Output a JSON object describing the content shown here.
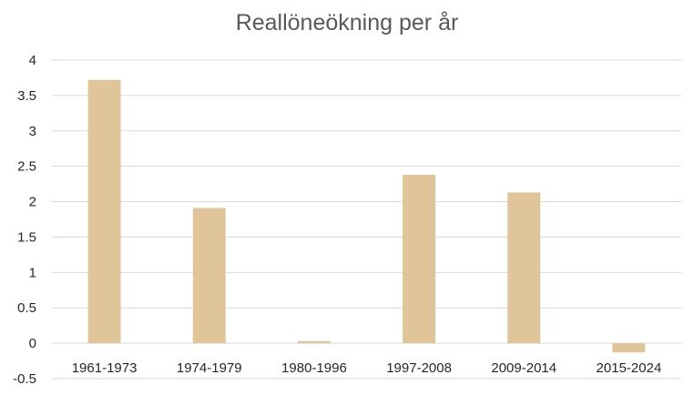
{
  "chart_data": {
    "type": "bar",
    "title": "Reallöneökning per år",
    "categories": [
      "1961-1973",
      "1974-1979",
      "1980-1996",
      "1997-2008",
      "2009-2014",
      "2015-2024"
    ],
    "values": [
      3.72,
      1.91,
      0.03,
      2.38,
      2.13,
      -0.13
    ],
    "ylim": [
      -0.5,
      4
    ],
    "yticks": [
      "-0.5",
      "0",
      "0.5",
      "1",
      "1.5",
      "2",
      "2.5",
      "3",
      "3.5",
      "4"
    ],
    "grid": true,
    "legend": "none",
    "bar_color": "#E0C59A",
    "grid_color": "#D9D9D9"
  }
}
